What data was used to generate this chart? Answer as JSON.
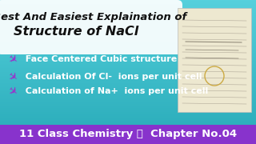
{
  "bg_color": "#3bbfcc",
  "footer_color": "#8833cc",
  "title_box_color": "#ffffff",
  "title_line1": "Best And Easiest Explaination of",
  "title_line2": "Structure of NaCl",
  "bullet1": "  Face Centered Cubic structure",
  "bullet2": "  Calculation Of Cl-  ions per unit cell",
  "bullet3": "  Calculation of Na+  ions per unit cell",
  "footer_text": "11 Class Chemistry 🍲  Chapter No.04",
  "bullet_color": "#9933cc",
  "text_white": "#ffffff",
  "text_dark": "#111111",
  "title_fontsize": 9.5,
  "bullet_fontsize": 8.0,
  "footer_fontsize": 9.5
}
